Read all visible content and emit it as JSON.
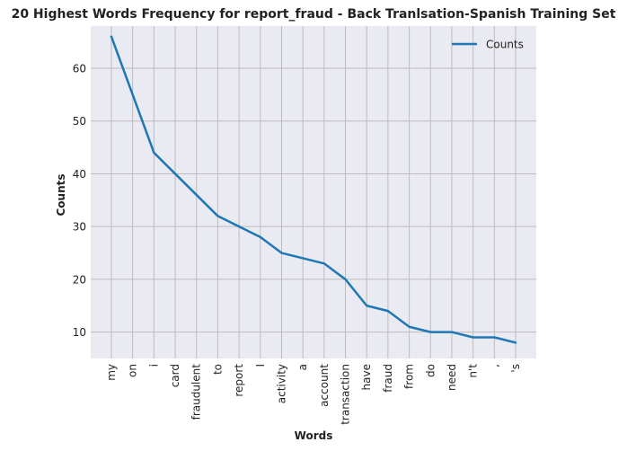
{
  "chart_data": {
    "type": "line",
    "title": "20 Highest Words Frequency for report_fraud - Back Tranlsation-Spanish Training Set",
    "xlabel": "Words",
    "ylabel": "Counts",
    "categories": [
      "my",
      "on",
      "i",
      "card",
      "fraudulent",
      "to",
      "report",
      "I",
      "activity",
      "a",
      "account",
      "transaction",
      "have",
      "fraud",
      "from",
      "do",
      "need",
      "n't",
      ",",
      "'s"
    ],
    "series": [
      {
        "name": "Counts",
        "values": [
          66,
          55,
          44,
          40,
          36,
          32,
          30,
          28,
          25,
          24,
          23,
          20,
          15,
          14,
          11,
          10,
          10,
          9,
          9,
          8
        ],
        "color": "#1f77b4"
      }
    ],
    "yticks": [
      10,
      20,
      30,
      40,
      50,
      60
    ],
    "ylim": [
      5,
      68
    ],
    "grid": true,
    "legend_position": "top-right",
    "plot_background": "#eaeaf2",
    "grid_color": "#bcbcbc"
  }
}
